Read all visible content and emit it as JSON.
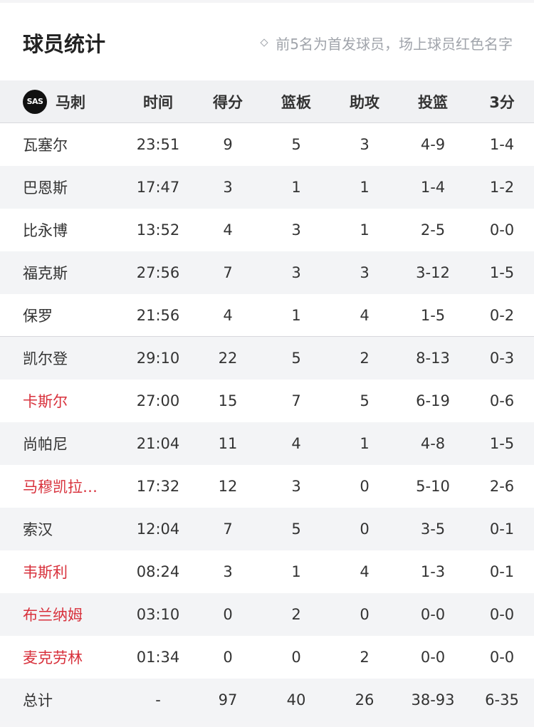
{
  "header": {
    "title": "球员统计",
    "note": "前5名为首发球员，场上球员红色名字"
  },
  "colors": {
    "on_court": "#d8313c",
    "stripe": "#f3f4f6"
  },
  "team": {
    "logo_text": "SAS",
    "name": "马刺",
    "logo_icon": "spurs-logo"
  },
  "columns": [
    "时间",
    "得分",
    "篮板",
    "助攻",
    "投篮",
    "3分"
  ],
  "players": [
    {
      "name": "瓦塞尔",
      "time": "23:51",
      "pts": "9",
      "reb": "5",
      "ast": "3",
      "fg": "4-9",
      "tp": "1-4",
      "on_court": false,
      "starter": true
    },
    {
      "name": "巴恩斯",
      "time": "17:47",
      "pts": "3",
      "reb": "1",
      "ast": "1",
      "fg": "1-4",
      "tp": "1-2",
      "on_court": false,
      "starter": true
    },
    {
      "name": "比永博",
      "time": "13:52",
      "pts": "4",
      "reb": "3",
      "ast": "1",
      "fg": "2-5",
      "tp": "0-0",
      "on_court": false,
      "starter": true
    },
    {
      "name": "福克斯",
      "time": "27:56",
      "pts": "7",
      "reb": "3",
      "ast": "3",
      "fg": "3-12",
      "tp": "1-5",
      "on_court": false,
      "starter": true
    },
    {
      "name": "保罗",
      "time": "21:56",
      "pts": "4",
      "reb": "1",
      "ast": "4",
      "fg": "1-5",
      "tp": "0-2",
      "on_court": false,
      "starter": true
    },
    {
      "name": "凯尔登",
      "time": "29:10",
      "pts": "22",
      "reb": "5",
      "ast": "2",
      "fg": "8-13",
      "tp": "0-3",
      "on_court": false,
      "starter": false
    },
    {
      "name": "卡斯尔",
      "time": "27:00",
      "pts": "15",
      "reb": "7",
      "ast": "5",
      "fg": "6-19",
      "tp": "0-6",
      "on_court": true,
      "starter": false
    },
    {
      "name": "尚帕尼",
      "time": "21:04",
      "pts": "11",
      "reb": "4",
      "ast": "1",
      "fg": "4-8",
      "tp": "1-5",
      "on_court": false,
      "starter": false
    },
    {
      "name": "马穆凯拉…",
      "time": "17:32",
      "pts": "12",
      "reb": "3",
      "ast": "0",
      "fg": "5-10",
      "tp": "2-6",
      "on_court": true,
      "starter": false
    },
    {
      "name": "索汉",
      "time": "12:04",
      "pts": "7",
      "reb": "5",
      "ast": "0",
      "fg": "3-5",
      "tp": "0-1",
      "on_court": false,
      "starter": false
    },
    {
      "name": "韦斯利",
      "time": "08:24",
      "pts": "3",
      "reb": "1",
      "ast": "4",
      "fg": "1-3",
      "tp": "0-1",
      "on_court": true,
      "starter": false
    },
    {
      "name": "布兰纳姆",
      "time": "03:10",
      "pts": "0",
      "reb": "2",
      "ast": "0",
      "fg": "0-0",
      "tp": "0-0",
      "on_court": true,
      "starter": false
    },
    {
      "name": "麦克劳林",
      "time": "01:34",
      "pts": "0",
      "reb": "0",
      "ast": "2",
      "fg": "0-0",
      "tp": "0-0",
      "on_court": true,
      "starter": false
    }
  ],
  "totals": {
    "name": "总计",
    "time": "-",
    "pts": "97",
    "reb": "40",
    "ast": "26",
    "fg": "38-93",
    "tp": "6-35"
  }
}
